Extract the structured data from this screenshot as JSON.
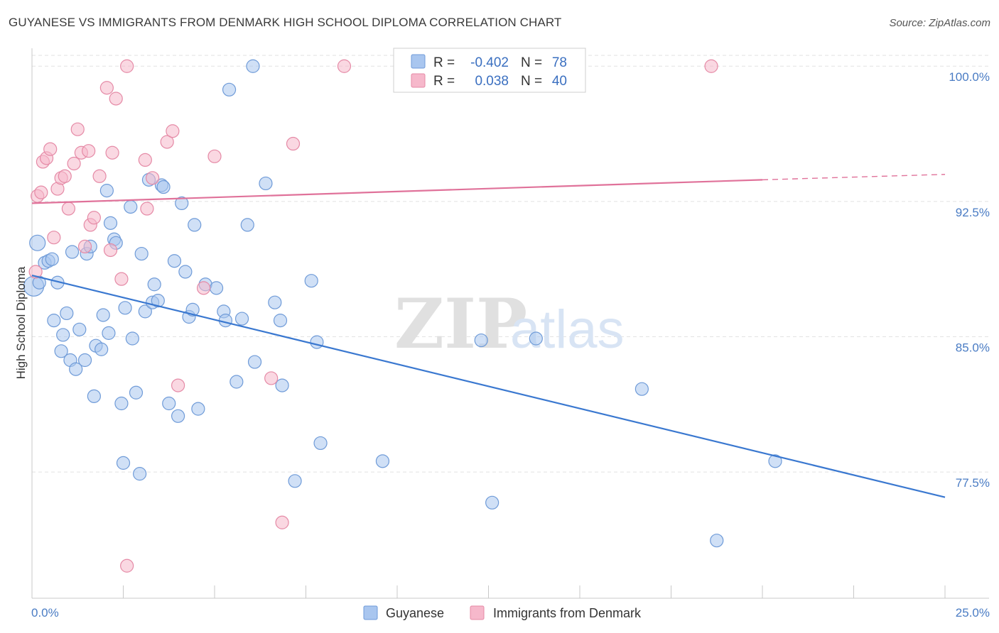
{
  "title": "GUYANESE VS IMMIGRANTS FROM DENMARK HIGH SCHOOL DIPLOMA CORRELATION CHART",
  "source": "Source: ZipAtlas.com",
  "watermark": {
    "zip": "ZIP",
    "atlas": "atlas"
  },
  "legend": {
    "r_label": "R =",
    "n_label": "N =",
    "rows": [
      {
        "r": "-0.402",
        "n": "78",
        "color": "#a9c6ef"
      },
      {
        "r": "0.038",
        "n": "40",
        "color": "#f6b8cb"
      }
    ]
  },
  "bottom_legend": [
    "Guyanese",
    "Immigrants from Denmark"
  ],
  "chart_data": {
    "type": "scatter",
    "title": "GUYANESE VS IMMIGRANTS FROM DENMARK HIGH SCHOOL DIPLOMA CORRELATION CHART",
    "xlabel": "",
    "ylabel": "High School Diploma",
    "xlim": [
      0,
      25
    ],
    "ylim": [
      70.5,
      100.6
    ],
    "x_tick_labels": [
      "0.0%",
      "25.0%"
    ],
    "y_ticks": [
      100.0,
      92.5,
      85.0,
      77.5
    ],
    "y_tick_labels": [
      "100.0%",
      "92.5%",
      "85.0%",
      "77.5%"
    ],
    "grid": true,
    "series": [
      {
        "name": "Guyanese",
        "color": "#a9c6ef",
        "stroke": "#6f9bd8",
        "trend": {
          "x": [
            0.0,
            25.0
          ],
          "y": [
            88.4,
            76.1
          ],
          "color": "#3a78d0"
        },
        "points": [
          [
            0.05,
            87.8
          ],
          [
            0.15,
            90.2
          ],
          [
            0.2,
            88.0
          ],
          [
            0.35,
            89.1
          ],
          [
            0.45,
            89.2
          ],
          [
            0.55,
            89.3
          ],
          [
            0.6,
            85.9
          ],
          [
            0.7,
            88.0
          ],
          [
            0.8,
            84.2
          ],
          [
            0.85,
            85.1
          ],
          [
            0.95,
            86.3
          ],
          [
            1.05,
            83.7
          ],
          [
            1.1,
            89.7
          ],
          [
            1.2,
            83.2
          ],
          [
            1.3,
            85.4
          ],
          [
            1.45,
            83.7
          ],
          [
            1.5,
            89.6
          ],
          [
            1.6,
            90.0
          ],
          [
            1.7,
            81.7
          ],
          [
            1.75,
            84.5
          ],
          [
            1.9,
            84.3
          ],
          [
            1.95,
            86.2
          ],
          [
            2.05,
            93.1
          ],
          [
            2.1,
            85.2
          ],
          [
            2.15,
            91.3
          ],
          [
            2.25,
            90.4
          ],
          [
            2.3,
            90.2
          ],
          [
            2.45,
            81.3
          ],
          [
            2.5,
            78.0
          ],
          [
            2.55,
            86.6
          ],
          [
            2.7,
            92.2
          ],
          [
            2.75,
            84.9
          ],
          [
            2.85,
            81.9
          ],
          [
            2.95,
            77.4
          ],
          [
            3.0,
            89.6
          ],
          [
            3.1,
            86.4
          ],
          [
            3.2,
            93.7
          ],
          [
            3.3,
            86.9
          ],
          [
            3.35,
            87.9
          ],
          [
            3.45,
            87.0
          ],
          [
            3.55,
            93.4
          ],
          [
            3.6,
            93.3
          ],
          [
            3.75,
            81.3
          ],
          [
            3.9,
            89.2
          ],
          [
            4.0,
            80.6
          ],
          [
            4.1,
            92.4
          ],
          [
            4.2,
            88.6
          ],
          [
            4.3,
            86.1
          ],
          [
            4.4,
            86.5
          ],
          [
            4.45,
            91.2
          ],
          [
            4.55,
            81.0
          ],
          [
            4.75,
            87.9
          ],
          [
            5.05,
            87.7
          ],
          [
            5.25,
            86.4
          ],
          [
            5.3,
            85.9
          ],
          [
            5.4,
            98.7
          ],
          [
            5.6,
            82.5
          ],
          [
            5.75,
            86.0
          ],
          [
            5.9,
            91.2
          ],
          [
            6.05,
            100.0
          ],
          [
            6.1,
            83.6
          ],
          [
            6.4,
            93.5
          ],
          [
            6.65,
            86.9
          ],
          [
            6.8,
            85.9
          ],
          [
            6.85,
            82.3
          ],
          [
            7.2,
            77.0
          ],
          [
            7.65,
            88.1
          ],
          [
            7.8,
            84.7
          ],
          [
            7.9,
            79.1
          ],
          [
            9.6,
            78.1
          ],
          [
            12.3,
            84.8
          ],
          [
            12.6,
            75.8
          ],
          [
            13.8,
            84.9
          ],
          [
            16.7,
            82.1
          ],
          [
            18.75,
            73.7
          ],
          [
            20.35,
            78.1
          ]
        ]
      },
      {
        "name": "Immigrants from Denmark",
        "color": "#f6b8cb",
        "stroke": "#e58aa6",
        "trend": {
          "x": [
            0.0,
            20.0
          ],
          "y": [
            92.4,
            93.7
          ],
          "x_dash_end": 25.0,
          "y_dash_end": 94.0,
          "color": "#e0729a"
        },
        "points": [
          [
            0.1,
            88.6
          ],
          [
            0.15,
            92.8
          ],
          [
            0.25,
            93.0
          ],
          [
            0.3,
            94.7
          ],
          [
            0.4,
            94.9
          ],
          [
            0.5,
            95.4
          ],
          [
            0.6,
            90.5
          ],
          [
            0.7,
            93.2
          ],
          [
            0.8,
            93.8
          ],
          [
            0.9,
            93.9
          ],
          [
            1.0,
            92.1
          ],
          [
            1.15,
            94.6
          ],
          [
            1.25,
            96.5
          ],
          [
            1.35,
            95.2
          ],
          [
            1.45,
            90.0
          ],
          [
            1.55,
            95.3
          ],
          [
            1.6,
            91.2
          ],
          [
            1.7,
            91.6
          ],
          [
            1.85,
            93.9
          ],
          [
            2.05,
            98.8
          ],
          [
            2.15,
            89.8
          ],
          [
            2.2,
            95.2
          ],
          [
            2.3,
            98.2
          ],
          [
            2.45,
            88.2
          ],
          [
            2.6,
            100.0
          ],
          [
            3.1,
            94.8
          ],
          [
            3.15,
            92.1
          ],
          [
            3.3,
            93.8
          ],
          [
            3.7,
            95.8
          ],
          [
            3.85,
            96.4
          ],
          [
            4.0,
            82.3
          ],
          [
            4.7,
            87.7
          ],
          [
            5.0,
            95.0
          ],
          [
            6.55,
            82.7
          ],
          [
            6.85,
            74.7
          ],
          [
            7.15,
            95.7
          ],
          [
            8.55,
            100.0
          ],
          [
            18.6,
            100.0
          ],
          [
            2.6,
            72.3
          ]
        ]
      }
    ]
  }
}
